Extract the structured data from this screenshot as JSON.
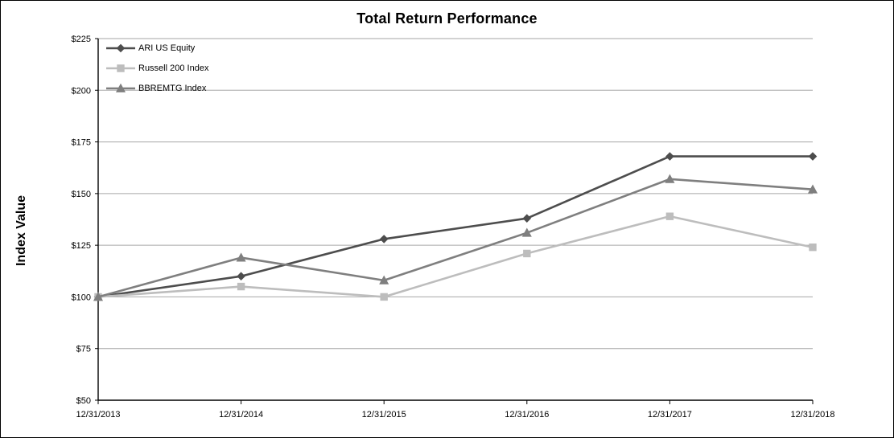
{
  "chart_data": {
    "type": "line",
    "title": "Total Return Performance",
    "xlabel": "",
    "ylabel": "Index Value",
    "categories": [
      "12/31/2013",
      "12/31/2014",
      "12/31/2015",
      "12/31/2016",
      "12/31/2017",
      "12/31/2018"
    ],
    "series": [
      {
        "name": "ARI US Equity",
        "marker": "diamond",
        "color": "#4d4d4d",
        "values": [
          100,
          110,
          128,
          138,
          168,
          168
        ]
      },
      {
        "name": "Russell 200 Index",
        "marker": "square",
        "color": "#bdbdbd",
        "values": [
          100,
          105,
          100,
          121,
          139,
          124
        ]
      },
      {
        "name": "BBREMTG Index",
        "marker": "triangle",
        "color": "#7f7f7f",
        "values": [
          100,
          119,
          108,
          131,
          157,
          152
        ]
      }
    ],
    "ylim": [
      50,
      225
    ],
    "ytick_step": 25,
    "ytick_prefix": "$",
    "grid": true,
    "grid_color": "#a6a6a6",
    "axis_color": "#000000",
    "legend_position": "top-left"
  }
}
